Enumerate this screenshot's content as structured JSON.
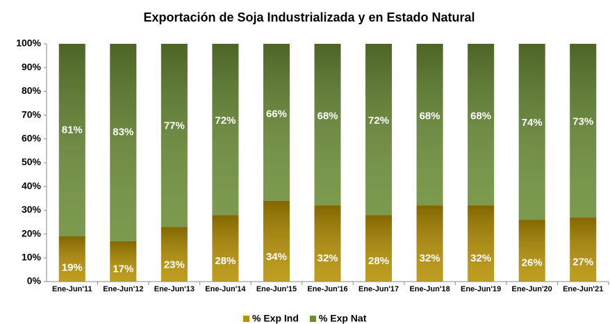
{
  "chart_data": {
    "type": "stacked_bar",
    "title": "Exportación de Soja Industrializada y en Estado Natural",
    "categories": [
      "Ene-Jun'11",
      "Ene-Jun'12",
      "Ene-Jun'13",
      "Ene-Jun'14",
      "Ene-Jun'15",
      "Ene-Jun'16",
      "Ene-Jun'17",
      "Ene-Jun'18",
      "Ene-Jun'19",
      "Ene-Jun'20",
      "Ene-Jun'21"
    ],
    "series": [
      {
        "name": "% Exp Ind",
        "color": "#b58f00",
        "values": [
          19,
          17,
          23,
          28,
          34,
          32,
          28,
          32,
          32,
          26,
          27
        ],
        "value_labels": [
          "19%",
          "17%",
          "23%",
          "28%",
          "34%",
          "32%",
          "28%",
          "32%",
          "32%",
          "26%",
          "27%"
        ]
      },
      {
        "name": "% Exp Nat",
        "color": "#6a8c35",
        "values": [
          81,
          83,
          77,
          72,
          66,
          68,
          72,
          68,
          68,
          74,
          73
        ],
        "value_labels": [
          "81%",
          "83%",
          "77%",
          "72%",
          "66%",
          "68%",
          "72%",
          "68%",
          "68%",
          "74%",
          "73%"
        ]
      }
    ],
    "ylim": [
      0,
      100
    ],
    "yticks": [
      {
        "value": 0,
        "label": "0%"
      },
      {
        "value": 10,
        "label": "10%"
      },
      {
        "value": 20,
        "label": "20%"
      },
      {
        "value": 30,
        "label": "30%"
      },
      {
        "value": 40,
        "label": "40%"
      },
      {
        "value": 50,
        "label": "50%"
      },
      {
        "value": 60,
        "label": "60%"
      },
      {
        "value": 70,
        "label": "70%"
      },
      {
        "value": 80,
        "label": "80%"
      },
      {
        "value": 90,
        "label": "90%"
      },
      {
        "value": 100,
        "label": "100%"
      }
    ],
    "legend": "bottom"
  }
}
